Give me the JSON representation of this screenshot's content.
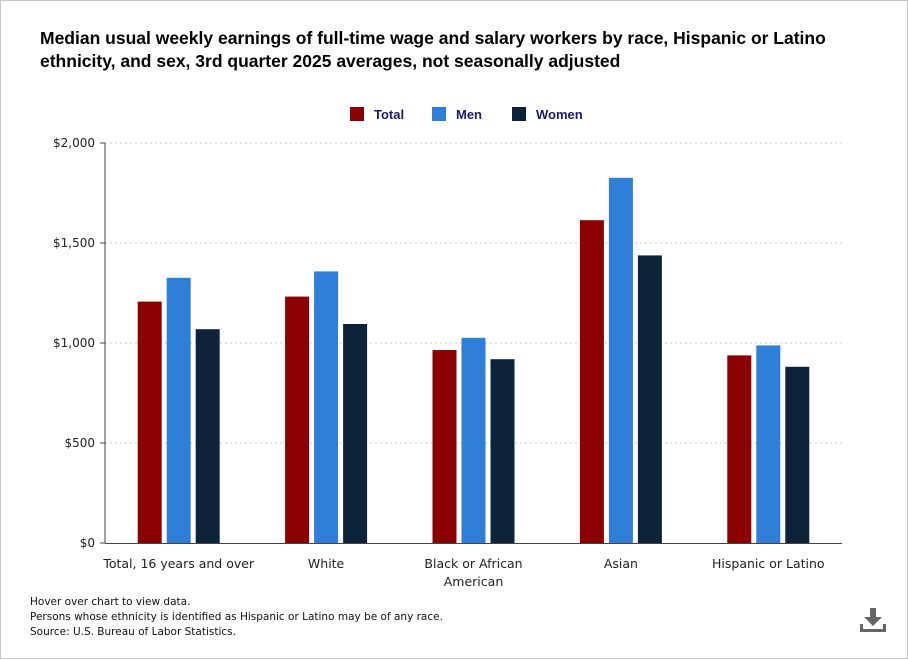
{
  "chart_data": {
    "type": "bar",
    "title": "Median usual weekly earnings of full-time wage and salary workers by race, Hispanic or Latino ethnicity, and sex, 3rd quarter 2025 averages, not seasonally adjusted",
    "categories": [
      "Total, 16 years and over",
      "White",
      "Black or African American",
      "Asian",
      "Hispanic or Latino"
    ],
    "series": [
      {
        "name": "Total",
        "color": "#8b0000",
        "values": [
          1207,
          1232,
          965,
          1614,
          938
        ]
      },
      {
        "name": "Men",
        "color": "#2f7ed8",
        "values": [
          1326,
          1358,
          1026,
          1826,
          988
        ]
      },
      {
        "name": "Women",
        "color": "#0d233a",
        "values": [
          1069,
          1095,
          919,
          1438,
          881
        ]
      }
    ],
    "ylim": [
      0,
      2000
    ],
    "yticks": [
      0,
      500,
      1000,
      1500,
      2000
    ],
    "ytick_labels": [
      "$0",
      "$500",
      "$1,000",
      "$1,500",
      "$2,000"
    ],
    "xlabel": "",
    "ylabel": "",
    "legend_position": "top-center",
    "grid": true
  },
  "notes": {
    "line1": "Hover over chart to view data.",
    "line2": "Persons whose ethnicity is identified as Hispanic or Latino may be of any race.",
    "line3": "Source: U.S. Bureau of Labor Statistics."
  },
  "icons": {
    "download": "download-icon"
  }
}
